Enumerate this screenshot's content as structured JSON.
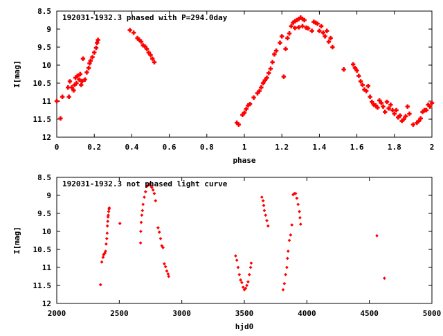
{
  "chart_data": [
    {
      "type": "scatter",
      "title": "192031-1932.3 phased with P=294.0day",
      "xlabel": "phase",
      "ylabel": "I[mag]",
      "xlim": [
        0,
        2
      ],
      "ylim": [
        12,
        8.5
      ],
      "y_inverted": true,
      "marker": "cross",
      "color": "#ff0000",
      "grid": false,
      "xticks": [
        "0",
        "0.2",
        "0.4",
        "0.6",
        "0.8",
        "1",
        "1.2",
        "1.4",
        "1.6",
        "1.8",
        "2"
      ],
      "yticks": [
        "8.5",
        "9",
        "9.5",
        "10",
        "10.5",
        "11",
        "11.5",
        "12"
      ],
      "series": [
        {
          "points": [
            [
              0.0,
              11.0
            ],
            [
              0.02,
              11.48
            ],
            [
              0.03,
              10.88
            ],
            [
              0.06,
              10.62
            ],
            [
              0.065,
              10.88
            ],
            [
              0.07,
              10.45
            ],
            [
              0.08,
              10.62
            ],
            [
              0.09,
              10.7
            ],
            [
              0.095,
              10.55
            ],
            [
              0.1,
              10.35
            ],
            [
              0.105,
              10.5
            ],
            [
              0.11,
              10.3
            ],
            [
              0.12,
              10.4
            ],
            [
              0.125,
              10.25
            ],
            [
              0.13,
              10.55
            ],
            [
              0.135,
              10.45
            ],
            [
              0.14,
              9.82
            ],
            [
              0.15,
              10.4
            ],
            [
              0.16,
              10.2
            ],
            [
              0.17,
              10.08
            ],
            [
              0.175,
              9.95
            ],
            [
              0.18,
              9.88
            ],
            [
              0.19,
              9.78
            ],
            [
              0.2,
              9.65
            ],
            [
              0.21,
              9.52
            ],
            [
              0.215,
              9.38
            ],
            [
              0.22,
              9.3
            ],
            [
              0.39,
              9.03
            ],
            [
              0.41,
              9.1
            ],
            [
              0.43,
              9.25
            ],
            [
              0.44,
              9.3
            ],
            [
              0.45,
              9.35
            ],
            [
              0.46,
              9.45
            ],
            [
              0.47,
              9.48
            ],
            [
              0.48,
              9.55
            ],
            [
              0.49,
              9.65
            ],
            [
              0.5,
              9.72
            ],
            [
              0.51,
              9.82
            ],
            [
              0.52,
              9.92
            ],
            [
              0.96,
              11.6
            ],
            [
              0.97,
              11.65
            ],
            [
              0.99,
              11.38
            ],
            [
              1.0,
              11.32
            ],
            [
              1.01,
              11.22
            ],
            [
              1.02,
              11.12
            ],
            [
              1.03,
              11.08
            ],
            [
              1.05,
              10.9
            ],
            [
              1.07,
              10.78
            ],
            [
              1.08,
              10.72
            ],
            [
              1.09,
              10.62
            ],
            [
              1.1,
              10.5
            ],
            [
              1.11,
              10.42
            ],
            [
              1.12,
              10.35
            ],
            [
              1.13,
              10.22
            ],
            [
              1.14,
              10.1
            ],
            [
              1.15,
              9.92
            ],
            [
              1.16,
              9.7
            ],
            [
              1.17,
              9.6
            ],
            [
              1.19,
              9.38
            ],
            [
              1.2,
              9.2
            ],
            [
              1.21,
              10.32
            ],
            [
              1.22,
              9.55
            ],
            [
              1.23,
              9.25
            ],
            [
              1.24,
              9.12
            ],
            [
              1.25,
              8.92
            ],
            [
              1.26,
              8.82
            ],
            [
              1.27,
              8.78
            ],
            [
              1.28,
              8.75
            ],
            [
              1.29,
              8.72
            ],
            [
              1.3,
              8.68
            ],
            [
              1.31,
              8.72
            ],
            [
              1.32,
              8.75
            ],
            [
              1.27,
              8.97
            ],
            [
              1.29,
              8.95
            ],
            [
              1.31,
              8.92
            ],
            [
              1.33,
              8.96
            ],
            [
              1.34,
              8.98
            ],
            [
              1.36,
              9.05
            ],
            [
              1.37,
              8.8
            ],
            [
              1.38,
              8.82
            ],
            [
              1.39,
              8.85
            ],
            [
              1.4,
              9.05
            ],
            [
              1.41,
              8.92
            ],
            [
              1.42,
              9.1
            ],
            [
              1.43,
              9.2
            ],
            [
              1.44,
              9.05
            ],
            [
              1.45,
              9.35
            ],
            [
              1.46,
              9.25
            ],
            [
              1.47,
              9.5
            ],
            [
              1.53,
              10.12
            ],
            [
              1.58,
              9.98
            ],
            [
              1.59,
              10.08
            ],
            [
              1.6,
              10.15
            ],
            [
              1.61,
              10.3
            ],
            [
              1.62,
              10.45
            ],
            [
              1.63,
              10.55
            ],
            [
              1.64,
              10.68
            ],
            [
              1.65,
              10.72
            ],
            [
              1.66,
              10.58
            ],
            [
              1.67,
              10.88
            ],
            [
              1.68,
              11.02
            ],
            [
              1.69,
              11.1
            ],
            [
              1.7,
              11.12
            ],
            [
              1.71,
              11.18
            ],
            [
              1.72,
              10.98
            ],
            [
              1.73,
              11.05
            ],
            [
              1.74,
              11.15
            ],
            [
              1.75,
              11.3
            ],
            [
              1.76,
              11.02
            ],
            [
              1.77,
              11.2
            ],
            [
              1.78,
              11.1
            ],
            [
              1.79,
              11.25
            ],
            [
              1.8,
              11.35
            ],
            [
              1.81,
              11.25
            ],
            [
              1.82,
              11.45
            ],
            [
              1.83,
              11.4
            ],
            [
              1.84,
              11.55
            ],
            [
              1.85,
              11.5
            ],
            [
              1.86,
              11.42
            ],
            [
              1.87,
              11.15
            ],
            [
              1.88,
              11.35
            ],
            [
              1.9,
              11.65
            ],
            [
              1.92,
              11.6
            ],
            [
              1.93,
              11.55
            ],
            [
              1.94,
              11.48
            ],
            [
              1.95,
              11.3
            ],
            [
              1.96,
              11.25
            ],
            [
              1.97,
              11.25
            ],
            [
              1.98,
              11.1
            ],
            [
              1.99,
              11.15
            ],
            [
              2.0,
              11.05
            ]
          ]
        }
      ]
    },
    {
      "type": "scatter",
      "title": "192031-1932.3 not phased light curve",
      "xlabel": "hjd0",
      "ylabel": "I[mag]",
      "xlim": [
        2000,
        5000
      ],
      "ylim": [
        12,
        8.5
      ],
      "y_inverted": true,
      "marker": "diamond",
      "color": "#ff0000",
      "grid": false,
      "xticks": [
        "2000",
        "2500",
        "3000",
        "3500",
        "4000",
        "4500",
        "5000"
      ],
      "yticks": [
        "8.5",
        "9",
        "9.5",
        "10",
        "10.5",
        "11",
        "11.5",
        "12"
      ],
      "series": [
        {
          "points": [
            [
              2350,
              11.48
            ],
            [
              2360,
              10.85
            ],
            [
              2370,
              10.72
            ],
            [
              2375,
              10.65
            ],
            [
              2380,
              10.62
            ],
            [
              2385,
              10.6
            ],
            [
              2390,
              10.55
            ],
            [
              2395,
              10.35
            ],
            [
              2400,
              10.2
            ],
            [
              2403,
              10.05
            ],
            [
              2405,
              9.85
            ],
            [
              2408,
              9.72
            ],
            [
              2410,
              9.6
            ],
            [
              2412,
              9.55
            ],
            [
              2415,
              9.45
            ],
            [
              2418,
              9.38
            ],
            [
              2420,
              9.35
            ],
            [
              2505,
              9.78
            ],
            [
              2670,
              10.32
            ],
            [
              2672,
              10.0
            ],
            [
              2675,
              9.75
            ],
            [
              2680,
              9.55
            ],
            [
              2685,
              9.42
            ],
            [
              2690,
              9.25
            ],
            [
              2700,
              9.05
            ],
            [
              2710,
              8.9
            ],
            [
              2720,
              8.75
            ],
            [
              2730,
              8.72
            ],
            [
              2740,
              8.68
            ],
            [
              2750,
              8.72
            ],
            [
              2760,
              8.78
            ],
            [
              2770,
              8.85
            ],
            [
              2780,
              8.95
            ],
            [
              2790,
              9.15
            ],
            [
              2810,
              9.9
            ],
            [
              2820,
              10.02
            ],
            [
              2830,
              10.2
            ],
            [
              2840,
              10.4
            ],
            [
              2850,
              10.45
            ],
            [
              2860,
              10.9
            ],
            [
              2870,
              10.98
            ],
            [
              2880,
              11.1
            ],
            [
              2890,
              11.18
            ],
            [
              2895,
              11.25
            ],
            [
              3430,
              10.68
            ],
            [
              3440,
              10.8
            ],
            [
              3450,
              11.0
            ],
            [
              3460,
              11.2
            ],
            [
              3470,
              11.35
            ],
            [
              3480,
              11.42
            ],
            [
              3490,
              11.55
            ],
            [
              3500,
              11.62
            ],
            [
              3510,
              11.58
            ],
            [
              3520,
              11.5
            ],
            [
              3530,
              11.4
            ],
            [
              3540,
              11.2
            ],
            [
              3550,
              11.0
            ],
            [
              3555,
              10.88
            ],
            [
              3640,
              9.05
            ],
            [
              3650,
              9.15
            ],
            [
              3655,
              9.28
            ],
            [
              3660,
              9.42
            ],
            [
              3670,
              9.55
            ],
            [
              3680,
              9.7
            ],
            [
              3690,
              9.85
            ],
            [
              3810,
              11.62
            ],
            [
              3820,
              11.45
            ],
            [
              3830,
              11.2
            ],
            [
              3840,
              11.0
            ],
            [
              3845,
              10.75
            ],
            [
              3850,
              10.55
            ],
            [
              3860,
              10.25
            ],
            [
              3870,
              10.1
            ],
            [
              3880,
              9.82
            ],
            [
              3890,
              8.98
            ],
            [
              3900,
              8.95
            ],
            [
              3910,
              8.95
            ],
            [
              3920,
              9.08
            ],
            [
              3930,
              9.25
            ],
            [
              3940,
              9.45
            ],
            [
              3945,
              9.62
            ],
            [
              3950,
              9.8
            ],
            [
              4560,
              10.12
            ],
            [
              4620,
              11.3
            ]
          ]
        }
      ]
    }
  ]
}
